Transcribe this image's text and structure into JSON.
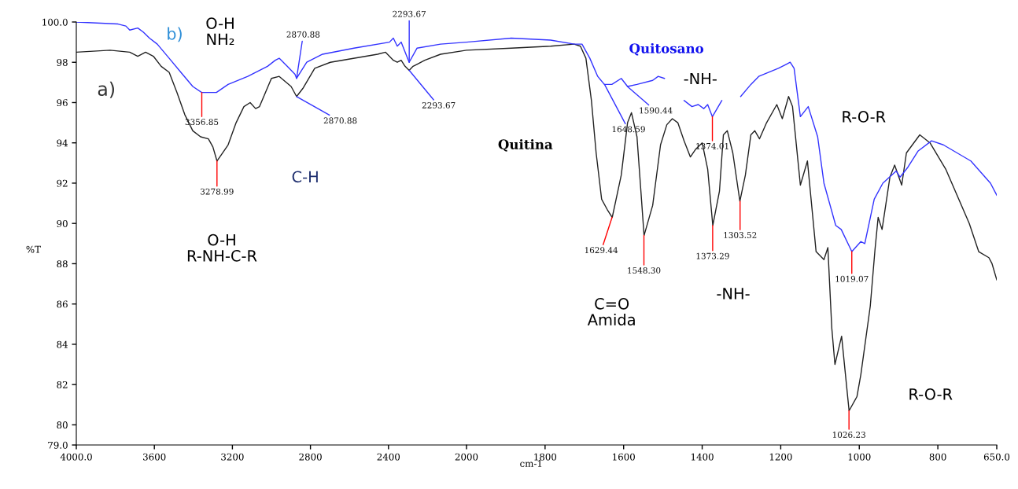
{
  "chart_data": [
    {
      "type": "line",
      "ylabel": "%T",
      "xlim": [
        4000,
        2000
      ],
      "ylim": [
        79,
        100
      ],
      "xticks": [
        {
          "value": 4000,
          "label": "4000.0"
        },
        3600,
        3200,
        2800,
        2400,
        2000
      ],
      "yticks": [
        {
          "value": 79,
          "label": "79.0"
        },
        80,
        82,
        84,
        86,
        88,
        90,
        92,
        94,
        96,
        98,
        {
          "value": 100,
          "label": "100.0"
        }
      ],
      "grid": false,
      "series": [
        {
          "color": "#222222",
          "x": [
            4000,
            3827,
            3726,
            3685,
            3645,
            3605,
            3565,
            3524,
            3484,
            3444,
            3403,
            3363,
            3323,
            3300,
            3279,
            3222,
            3181,
            3141,
            3109,
            3081,
            3061,
            3000,
            2960,
            2899,
            2871,
            2839,
            2778,
            2698,
            2456,
            2415,
            2375,
            2355,
            2335,
            2315,
            2294,
            2274,
            2254,
            2214,
            2133,
            2000
          ],
          "values": [
            98.5,
            98.6,
            98.5,
            98.3,
            98.5,
            98.3,
            97.8,
            97.5,
            96.5,
            95.4,
            94.6,
            94.3,
            94.2,
            93.8,
            93.1,
            93.9,
            95.0,
            95.8,
            96.0,
            95.7,
            95.8,
            97.2,
            97.3,
            96.8,
            96.3,
            96.7,
            97.7,
            98.0,
            98.4,
            98.5,
            98.1,
            98.0,
            98.1,
            97.8,
            97.6,
            97.8,
            97.9,
            98.1,
            98.4,
            98.6
          ]
        },
        {
          "color": "#3333ff",
          "x": [
            4000,
            3786,
            3746,
            3726,
            3685,
            3657,
            3625,
            3585,
            3524,
            3464,
            3403,
            3357,
            3282,
            3222,
            3121,
            3020,
            2980,
            2960,
            2919,
            2879,
            2871,
            2819,
            2738,
            2577,
            2395,
            2375,
            2355,
            2335,
            2294,
            2254,
            2133,
            2000
          ],
          "values": [
            100.0,
            99.9,
            99.8,
            99.6,
            99.7,
            99.5,
            99.2,
            98.9,
            98.2,
            97.5,
            96.8,
            96.5,
            96.5,
            96.9,
            97.3,
            97.8,
            98.1,
            98.2,
            97.8,
            97.4,
            97.2,
            98.0,
            98.4,
            98.7,
            99.0,
            99.2,
            98.8,
            99.0,
            98.0,
            98.7,
            98.9,
            99.0
          ]
        }
      ],
      "annotations": [
        {
          "text": "3356.85",
          "x": 3356.85,
          "y": 96.5
        },
        {
          "text": "3278.99",
          "x": 3278.99,
          "y": 93.1
        },
        {
          "text": "2870.88",
          "x": 2870.88,
          "y": 97.2
        },
        {
          "text": "2870.88",
          "x": 2870.88,
          "y": 96.3
        },
        {
          "text": "2293.67",
          "x": 2293.67,
          "y": 97.6
        },
        {
          "text": "2293.67",
          "x": 2293.67,
          "y": 98.0
        },
        "a)",
        "b)",
        "O-H\nNH₂",
        "C-H",
        "O-H\nR-NH-C-R"
      ]
    },
    {
      "type": "line",
      "xlabel": "cm-1",
      "xlim": [
        2000,
        650
      ],
      "ylim": [
        79,
        100
      ],
      "xticks": [
        1800,
        1600,
        1400,
        1200,
        1000,
        800,
        {
          "value": 650,
          "label": "650.0"
        }
      ],
      "tick_labels": "x",
      "grid": false,
      "series": [
        {
          "color": "#222222",
          "x": [
            2000,
            1886,
            1786,
            1726,
            1710,
            1696,
            1682,
            1670,
            1656,
            1642,
            1629,
            1606,
            1590,
            1580,
            1566,
            1556,
            1548,
            1526,
            1506,
            1490,
            1476,
            1462,
            1446,
            1430,
            1416,
            1400,
            1386,
            1373,
            1356,
            1346,
            1336,
            1322,
            1304,
            1290,
            1276,
            1266,
            1254,
            1236,
            1210,
            1196,
            1180,
            1170,
            1150,
            1132,
            1110,
            1090,
            1080,
            1070,
            1062,
            1045,
            1026,
            1006,
            996,
            972,
            960,
            952,
            942,
            922,
            910,
            892,
            880,
            846,
            820,
            780,
            720,
            696,
            670,
            662,
            650
          ],
          "values": [
            98.6,
            98.7,
            98.8,
            98.9,
            98.8,
            98.2,
            96.1,
            93.5,
            91.2,
            90.7,
            90.3,
            92.4,
            95.0,
            95.5,
            94.3,
            91.6,
            89.4,
            90.9,
            93.9,
            94.9,
            95.2,
            95.0,
            94.1,
            93.3,
            93.7,
            94.0,
            92.7,
            89.9,
            91.6,
            94.4,
            94.6,
            93.5,
            91.1,
            92.4,
            94.4,
            94.6,
            94.2,
            95.0,
            95.9,
            95.2,
            96.3,
            95.8,
            91.9,
            93.1,
            88.6,
            88.2,
            88.8,
            84.8,
            83.0,
            84.4,
            80.7,
            81.4,
            82.5,
            85.9,
            88.7,
            90.3,
            89.7,
            92.3,
            92.9,
            91.9,
            93.5,
            94.4,
            94.0,
            92.7,
            90.0,
            88.6,
            88.3,
            88.0,
            87.2
          ]
        },
        {
          "color": "#3333ff",
          "x": [
            2000,
            1886,
            1786,
            1726,
            1706,
            1686,
            1666,
            1649,
            1630,
            1606,
            1590,
            1566,
            1526,
            1512,
            1496,
            1470,
            1446,
            1426,
            1410,
            1396,
            1386,
            1374,
            1350,
            1326,
            1302,
            1276,
            1256,
            1206,
            1186,
            1176,
            1166,
            1150,
            1130,
            1106,
            1090,
            1060,
            1046,
            1019,
            996,
            986,
            962,
            940,
            906,
            896,
            876,
            850,
            816,
            786,
            716,
            666,
            650
          ],
          "values": [
            99.0,
            99.2,
            99.1,
            98.9,
            98.9,
            98.2,
            97.3,
            96.9,
            96.9,
            97.2,
            96.8,
            96.9,
            97.1,
            97.3,
            97.2,
            null,
            96.1,
            95.8,
            95.9,
            95.7,
            95.9,
            95.3,
            96.1,
            null,
            96.3,
            96.9,
            97.3,
            97.7,
            97.9,
            98.0,
            97.7,
            95.3,
            95.8,
            94.3,
            92.0,
            89.9,
            89.7,
            88.6,
            89.1,
            89.0,
            91.2,
            92.0,
            92.6,
            92.3,
            92.8,
            93.6,
            94.1,
            93.9,
            93.1,
            92.0,
            91.4
          ]
        }
      ],
      "annotations": [
        {
          "text": "1648.59",
          "x": 1648.59,
          "y": 96.9
        },
        {
          "text": "1590.44",
          "x": 1590.44,
          "y": 96.8
        },
        {
          "text": "1374.01",
          "x": 1374.01,
          "y": 95.3
        },
        {
          "text": "1629.44",
          "x": 1629.44,
          "y": 90.3
        },
        {
          "text": "1548.30",
          "x": 1548.3,
          "y": 89.4
        },
        {
          "text": "1373.29",
          "x": 1373.29,
          "y": 89.9
        },
        {
          "text": "1303.52",
          "x": 1303.52,
          "y": 91.1
        },
        {
          "text": "1019.07",
          "x": 1019.07,
          "y": 88.6
        },
        {
          "text": "1026.23",
          "x": 1026.23,
          "y": 80.7
        },
        "Quitosano",
        "Quitina",
        "-NH-",
        "R-O-R",
        "C=O\nAmida",
        "-NH-",
        "R-O-R"
      ]
    }
  ]
}
